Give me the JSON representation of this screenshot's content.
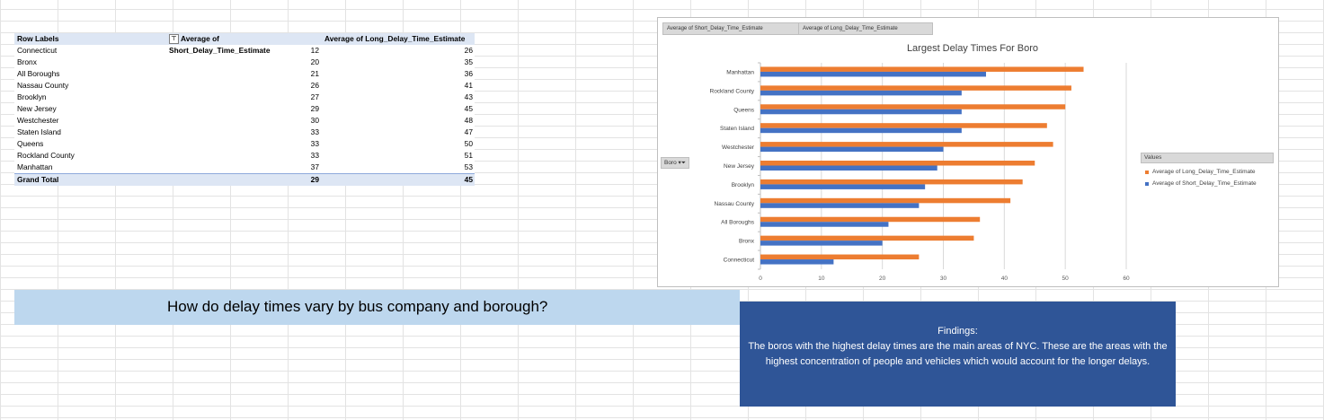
{
  "pivot": {
    "headers": [
      "Row Labels",
      "Average of Short_Delay_Time_Estimate",
      "Average of Long_Delay_Time_Estimate"
    ],
    "rows": [
      {
        "label": "Connecticut",
        "short": "12",
        "long": "26"
      },
      {
        "label": "Bronx",
        "short": "20",
        "long": "35"
      },
      {
        "label": "All Boroughs",
        "short": "21",
        "long": "36"
      },
      {
        "label": "Nassau County",
        "short": "26",
        "long": "41"
      },
      {
        "label": "Brooklyn",
        "short": "27",
        "long": "43"
      },
      {
        "label": "New Jersey",
        "short": "29",
        "long": "45"
      },
      {
        "label": "Westchester",
        "short": "30",
        "long": "48"
      },
      {
        "label": "Staten Island",
        "short": "33",
        "long": "47"
      },
      {
        "label": "Queens",
        "short": "33",
        "long": "50"
      },
      {
        "label": "Rockland County",
        "short": "33",
        "long": "51"
      },
      {
        "label": "Manhattan",
        "short": "37",
        "long": "53"
      }
    ],
    "total": {
      "label": "Grand Total",
      "short": "29",
      "long": "45"
    }
  },
  "chart": {
    "field_buttons": [
      "Average of Short_Delay_Time_Estimate",
      "Average of Long_Delay_Time_Estimate"
    ],
    "axis_field_button": "Boro",
    "legend_title": "Values"
  },
  "chart_data": {
    "type": "bar",
    "orientation": "horizontal",
    "title": "Largest Delay Times For Boro",
    "categories": [
      "Manhattan",
      "Rockland County",
      "Queens",
      "Staten Island",
      "Westchester",
      "New Jersey",
      "Brooklyn",
      "Nassau County",
      "All Boroughs",
      "Bronx",
      "Connecticut"
    ],
    "series": [
      {
        "name": "Average of Long_Delay_Time_Estimate",
        "color": "#ed7d31",
        "values": [
          53,
          51,
          50,
          47,
          48,
          45,
          43,
          41,
          36,
          35,
          26
        ]
      },
      {
        "name": "Average of Short_Delay_Time_Estimate",
        "color": "#4472c4",
        "values": [
          37,
          33,
          33,
          33,
          30,
          29,
          27,
          26,
          21,
          20,
          12
        ]
      }
    ],
    "xlim": [
      0,
      60
    ],
    "xticks": [
      "0",
      "10",
      "20",
      "30",
      "40",
      "50",
      "60"
    ],
    "grid": true,
    "legend_position": "right"
  },
  "question_text": "How do delay times vary by bus company and borough?",
  "findings": {
    "heading": "Findings:",
    "body": "The boros with the highest delay times are the main areas of NYC. These are the areas with the highest concentration of people and vehicles which would account for the longer delays."
  }
}
